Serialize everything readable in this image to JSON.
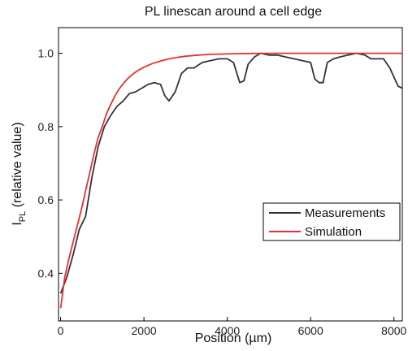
{
  "chart_data": {
    "type": "line",
    "title": "PL linescan around a cell edge",
    "xlabel": "Position (µm)",
    "ylabel": {
      "main": "I",
      "sub": "PL",
      "rest": " (relative value)"
    },
    "xlim": [
      -50,
      8200
    ],
    "ylim": [
      0.27,
      1.07
    ],
    "xticks": [
      0,
      2000,
      4000,
      6000,
      8000
    ],
    "yticks": [
      0.4,
      0.6,
      0.8,
      1.0
    ],
    "xtick_labels": [
      "0",
      "2000",
      "4000",
      "6000",
      "8000"
    ],
    "ytick_labels": [
      "0.4",
      "0.6",
      "0.8",
      "1.0"
    ],
    "grid": false,
    "legend_position": "middle-right",
    "series": [
      {
        "name": "Measurements",
        "color": "#333333",
        "x": [
          0,
          150,
          300,
          450,
          600,
          750,
          900,
          1050,
          1200,
          1350,
          1500,
          1650,
          1800,
          1950,
          2100,
          2250,
          2400,
          2500,
          2600,
          2750,
          2900,
          3050,
          3200,
          3400,
          3600,
          3800,
          4000,
          4150,
          4300,
          4400,
          4500,
          4650,
          4800,
          5000,
          5200,
          5400,
          5600,
          5800,
          6000,
          6100,
          6200,
          6300,
          6400,
          6550,
          6700,
          6900,
          7100,
          7300,
          7450,
          7600,
          7750,
          7900,
          8000,
          8100,
          8200
        ],
        "y": [
          0.345,
          0.39,
          0.45,
          0.52,
          0.555,
          0.66,
          0.745,
          0.8,
          0.83,
          0.855,
          0.87,
          0.89,
          0.895,
          0.905,
          0.915,
          0.92,
          0.915,
          0.885,
          0.87,
          0.895,
          0.945,
          0.96,
          0.96,
          0.975,
          0.98,
          0.985,
          0.985,
          0.975,
          0.92,
          0.925,
          0.97,
          0.99,
          1.0,
          0.995,
          0.995,
          0.99,
          0.985,
          0.98,
          0.975,
          0.93,
          0.92,
          0.92,
          0.975,
          0.985,
          0.99,
          0.995,
          1.0,
          0.995,
          0.985,
          0.985,
          0.985,
          0.96,
          0.935,
          0.91,
          0.905
        ]
      },
      {
        "name": "Simulation",
        "color": "#e83030",
        "x": [
          0,
          100,
          200,
          300,
          400,
          500,
          600,
          700,
          800,
          900,
          1000,
          1100,
          1200,
          1300,
          1400,
          1500,
          1600,
          1700,
          1800,
          1900,
          2000,
          2200,
          2400,
          2600,
          2800,
          3000,
          3300,
          3600,
          3900,
          4200,
          4600,
          5000,
          5500,
          6000,
          6500,
          7000,
          7500,
          8000,
          8200
        ],
        "y": [
          0.305,
          0.39,
          0.44,
          0.485,
          0.53,
          0.575,
          0.625,
          0.675,
          0.725,
          0.77,
          0.8,
          0.835,
          0.86,
          0.883,
          0.902,
          0.917,
          0.93,
          0.94,
          0.949,
          0.956,
          0.962,
          0.972,
          0.979,
          0.985,
          0.989,
          0.992,
          0.995,
          0.997,
          0.998,
          0.999,
          0.9995,
          1.0,
          1.0,
          1.0,
          1.0,
          1.0,
          1.0,
          1.0,
          1.0
        ]
      }
    ]
  }
}
